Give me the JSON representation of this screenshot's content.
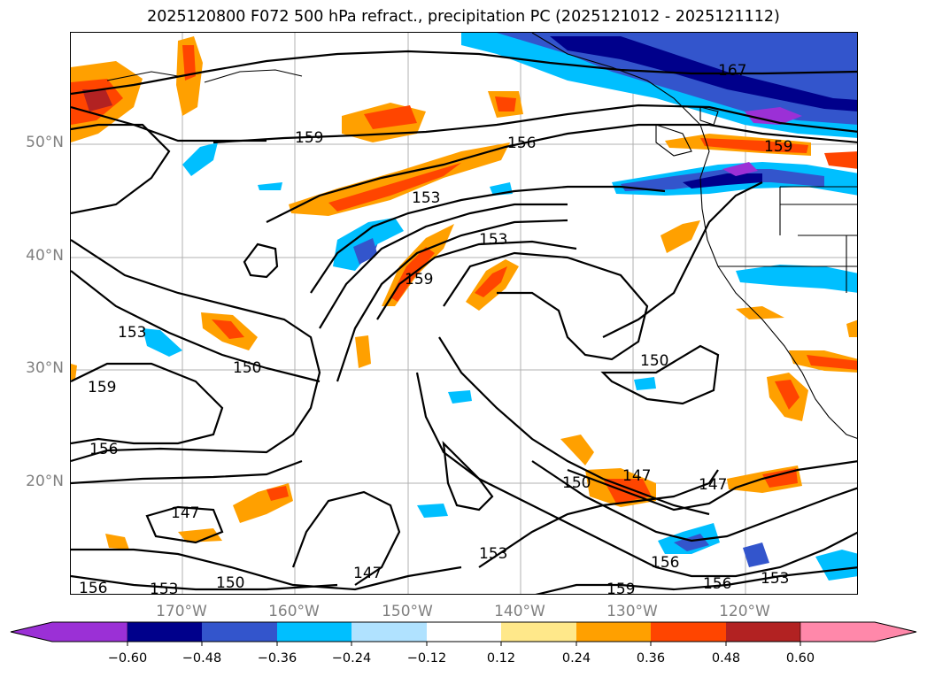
{
  "title": "2025120800 F072 500 hPa refract., precipitation PC (2025121012 - 2025121112)",
  "lat_labels": [
    "50°N",
    "40°N",
    "30°N",
    "20°N"
  ],
  "lon_labels": [
    "170°W",
    "160°W",
    "150°W",
    "140°W",
    "130°W",
    "120°W"
  ],
  "contour_labels": [
    "167",
    "159",
    "156",
    "159",
    "153",
    "153",
    "159",
    "153",
    "150",
    "159",
    "156",
    "150",
    "147",
    "147",
    "156",
    "153",
    "150",
    "147",
    "150",
    "147",
    "153",
    "156",
    "159",
    "156",
    "153"
  ],
  "colorbar": {
    "ticks": [
      "−0.60",
      "−0.48",
      "−0.36",
      "−0.24",
      "−0.12",
      "0.12",
      "0.24",
      "0.36",
      "0.48",
      "0.60"
    ],
    "colors": [
      "#9b30d6",
      "#00008b",
      "#3355cc",
      "#00bfff",
      "#b0e2ff",
      "#ffffff",
      "#ffe88a",
      "#ffa000",
      "#ff4500",
      "#b22222",
      "#ff88aa"
    ]
  },
  "colors": {
    "gridline": "#b0b0b0",
    "contour": "#000000",
    "axis_label": "#808080"
  }
}
